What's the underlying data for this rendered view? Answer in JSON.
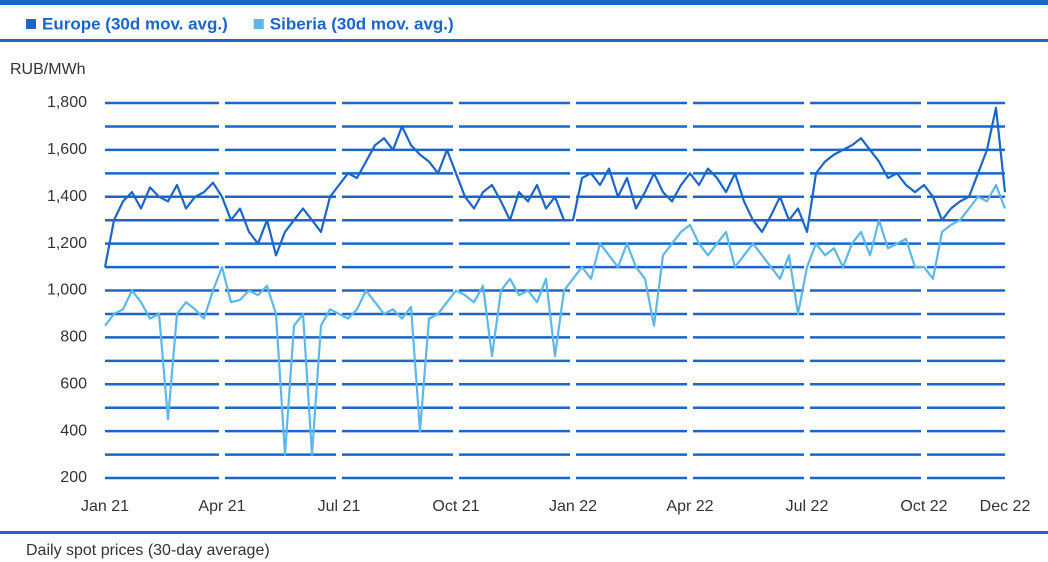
{
  "chart_data": {
    "type": "line",
    "y_label": "RUB/MWh",
    "note": "Daily spot prices (30-day average)",
    "categories": [
      "Jan 21",
      null,
      null,
      null,
      null,
      null,
      null,
      null,
      null,
      null,
      null,
      null,
      null,
      "Apr 21",
      null,
      null,
      null,
      null,
      null,
      null,
      null,
      null,
      null,
      null,
      null,
      null,
      "Jul 21",
      null,
      null,
      null,
      null,
      null,
      null,
      null,
      null,
      null,
      null,
      null,
      null,
      "Oct 21",
      null,
      null,
      null,
      null,
      null,
      null,
      null,
      null,
      null,
      null,
      null,
      null,
      "Jan 22",
      null,
      null,
      null,
      null,
      null,
      null,
      null,
      null,
      null,
      null,
      null,
      null,
      "Apr 22",
      null,
      null,
      null,
      null,
      null,
      null,
      null,
      null,
      null,
      null,
      null,
      null,
      "Jul 22",
      null,
      null,
      null,
      null,
      null,
      null,
      null,
      null,
      null,
      null,
      null,
      null,
      "Oct 22",
      null,
      null,
      null,
      null,
      null,
      null,
      null,
      null,
      "Dec 22"
    ],
    "series": [
      {
        "name": "Europe (30d mov. avg.)",
        "color": "#1a66c9",
        "values": [
          1100,
          1300,
          1380,
          1420,
          1350,
          1440,
          1400,
          1380,
          1450,
          1350,
          1400,
          1420,
          1460,
          1400,
          1300,
          1350,
          1250,
          1200,
          1300,
          1150,
          1250,
          1300,
          1350,
          1300,
          1250,
          1400,
          1450,
          1500,
          1480,
          1550,
          1620,
          1650,
          1600,
          1700,
          1620,
          1580,
          1550,
          1500,
          1600,
          1500,
          1400,
          1350,
          1420,
          1450,
          1380,
          1300,
          1420,
          1380,
          1450,
          1350,
          1400,
          1300,
          1300,
          1480,
          1500,
          1450,
          1520,
          1400,
          1480,
          1350,
          1420,
          1500,
          1420,
          1380,
          1450,
          1500,
          1450,
          1520,
          1480,
          1420,
          1500,
          1380,
          1300,
          1250,
          1320,
          1400,
          1300,
          1350,
          1250,
          1500,
          1550,
          1580,
          1600,
          1620,
          1650,
          1600,
          1550,
          1480,
          1500,
          1450,
          1420,
          1450,
          1400,
          1300,
          1350,
          1380,
          1400,
          1500,
          1600,
          1780,
          1420
        ]
      },
      {
        "name": "Siberia (30d mov. avg.)",
        "color": "#5cb8ec",
        "values": [
          850,
          900,
          920,
          1000,
          950,
          880,
          900,
          450,
          900,
          950,
          920,
          880,
          1000,
          1100,
          950,
          960,
          1000,
          980,
          1020,
          900,
          300,
          850,
          900,
          300,
          850,
          920,
          900,
          880,
          920,
          1000,
          950,
          900,
          920,
          880,
          930,
          400,
          880,
          900,
          950,
          1000,
          980,
          950,
          1020,
          720,
          1000,
          1050,
          980,
          1000,
          950,
          1050,
          720,
          1000,
          1050,
          1100,
          1050,
          1200,
          1150,
          1100,
          1200,
          1100,
          1050,
          850,
          1150,
          1200,
          1250,
          1280,
          1200,
          1150,
          1200,
          1250,
          1100,
          1150,
          1200,
          1150,
          1100,
          1050,
          1150,
          900,
          1100,
          1200,
          1150,
          1180,
          1100,
          1200,
          1250,
          1150,
          1300,
          1180,
          1200,
          1220,
          1100,
          1100,
          1050,
          1250,
          1280,
          1300,
          1350,
          1400,
          1380,
          1450,
          1350
        ]
      }
    ],
    "ylim": [
      200,
      1800
    ],
    "yticks": [
      {
        "value": 200,
        "label": "200"
      },
      {
        "value": 400,
        "label": "400"
      },
      {
        "value": 600,
        "label": "600"
      },
      {
        "value": 800,
        "label": "800"
      },
      {
        "value": 1000,
        "label": "1,000"
      },
      {
        "value": 1200,
        "label": "1,200"
      },
      {
        "value": 1400,
        "label": "1,400"
      },
      {
        "value": 1600,
        "label": "1,600"
      },
      {
        "value": 1800,
        "label": "1,800"
      }
    ],
    "minor_yticks": [
      300,
      500,
      700,
      900,
      1100,
      1300,
      1500,
      1700
    ],
    "grid": true
  }
}
